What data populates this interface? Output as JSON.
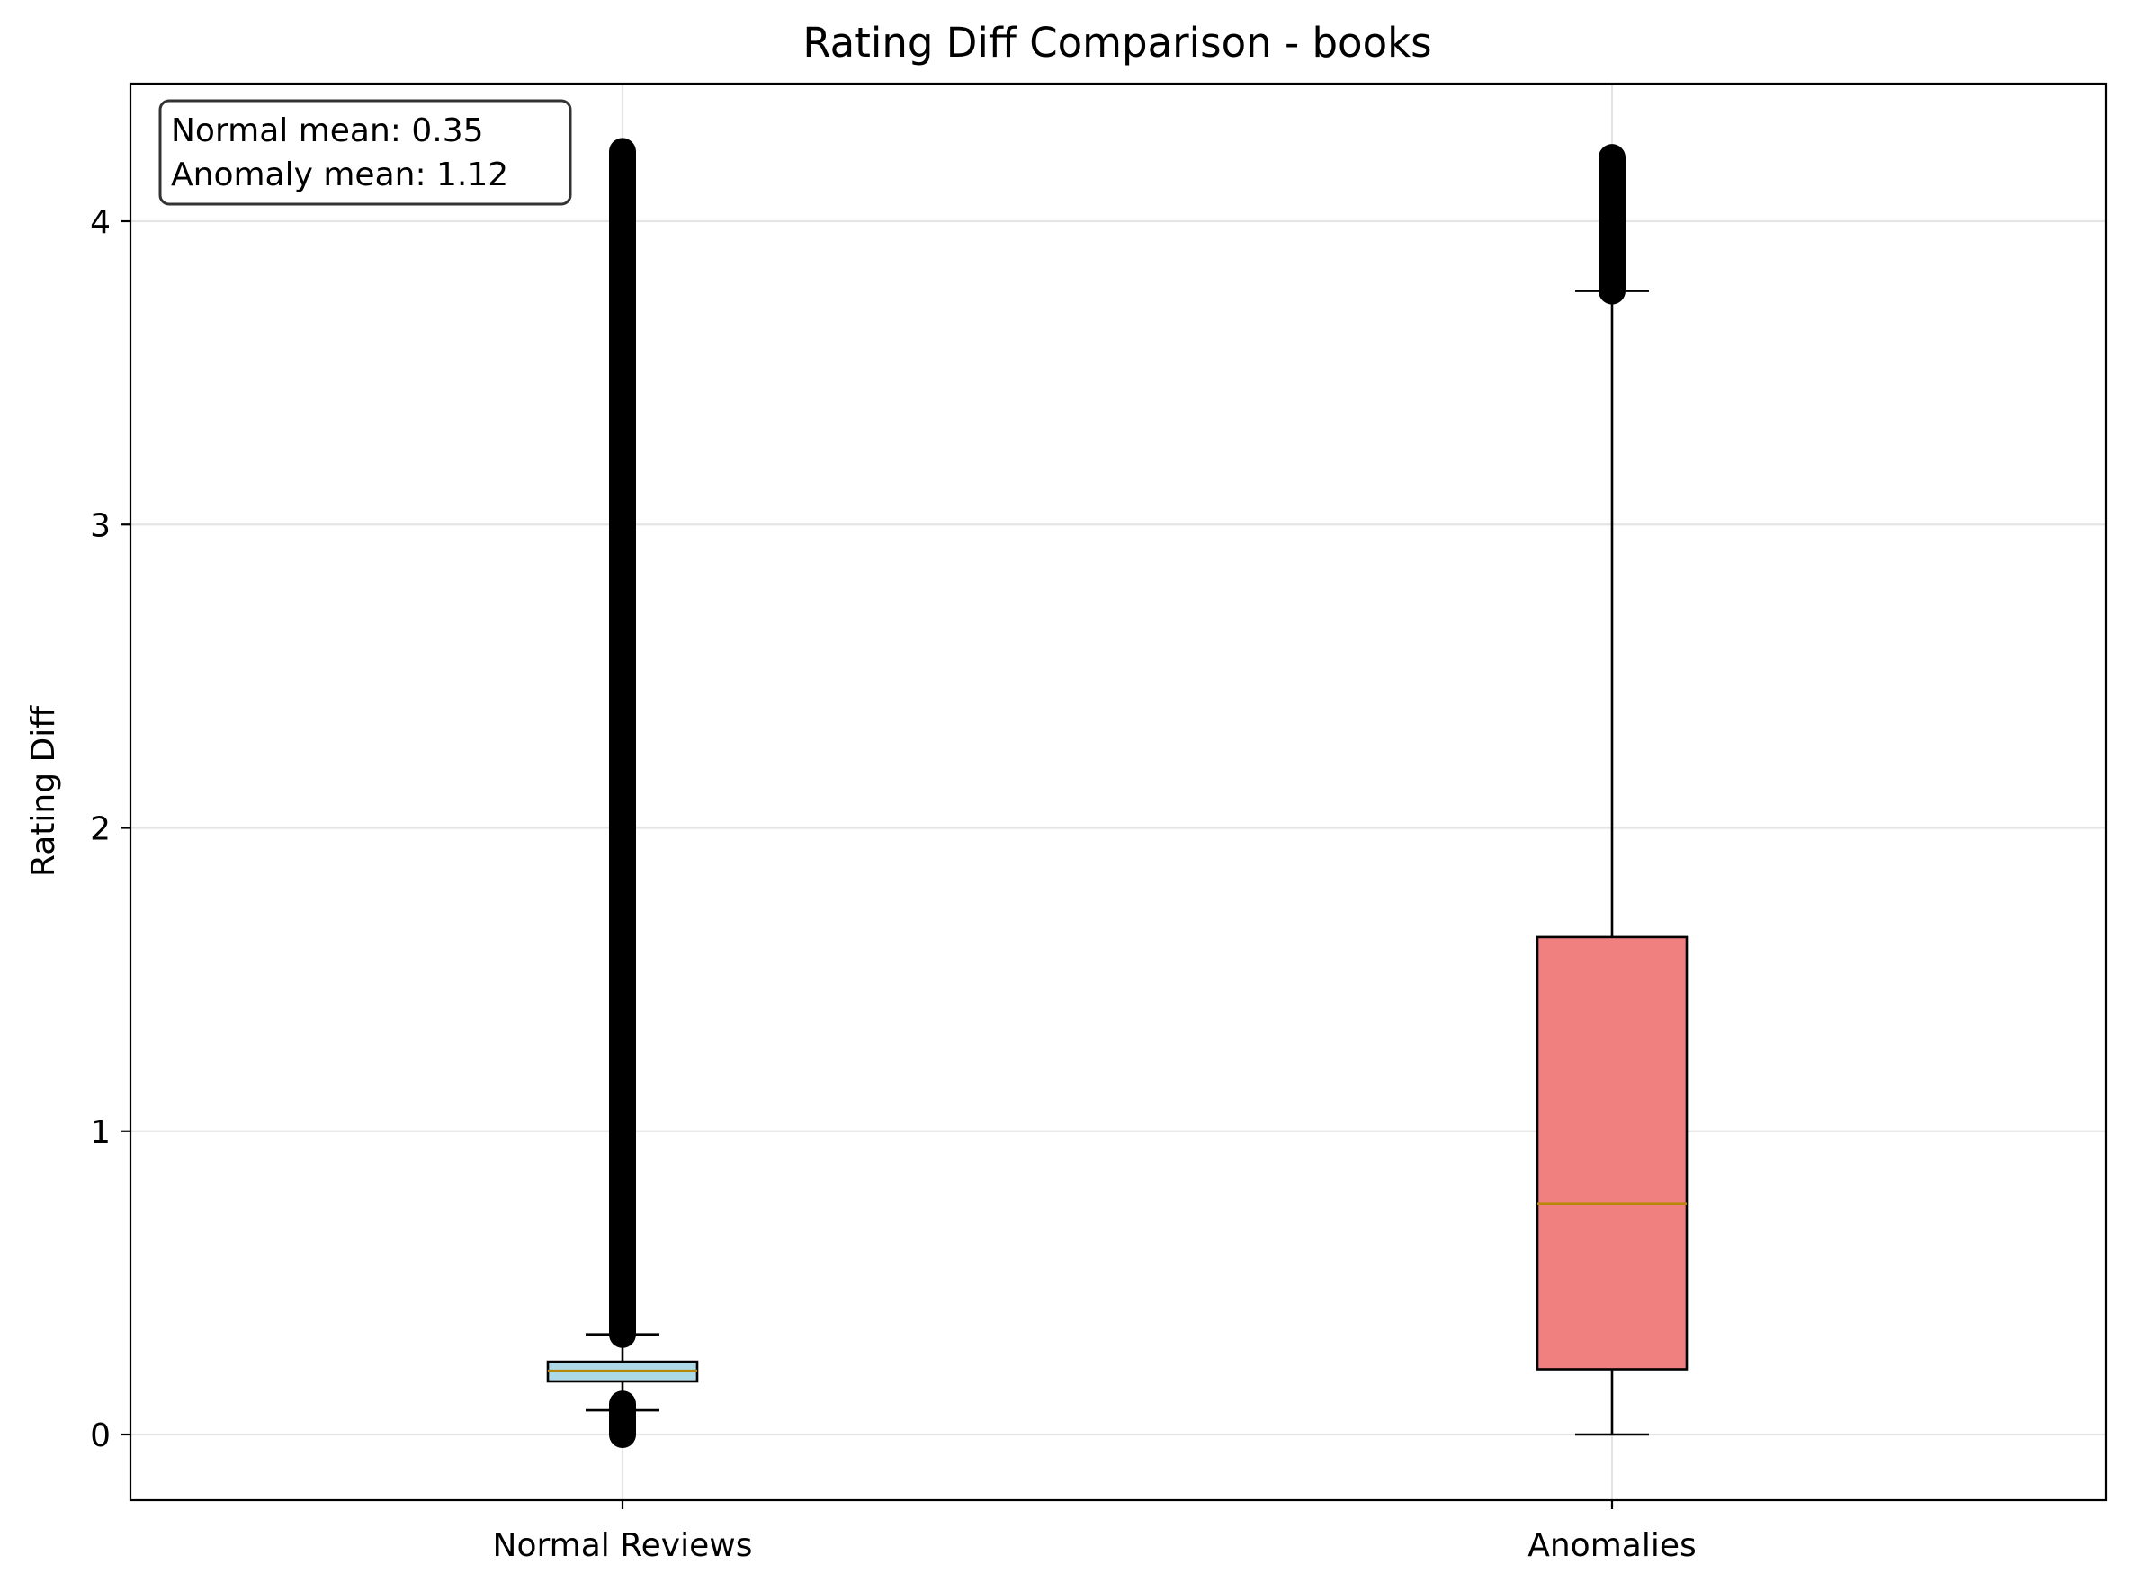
{
  "chart_data": {
    "type": "box",
    "title": "Rating Diff Comparison - books",
    "xlabel": "",
    "ylabel": "Rating Diff",
    "ylim": [
      -0.22,
      4.45
    ],
    "yticks": [
      0,
      1,
      2,
      3,
      4
    ],
    "grid": true,
    "categories": [
      "Normal Reviews",
      "Anomalies"
    ],
    "series": [
      {
        "name": "Normal Reviews",
        "fill": "#add8e6",
        "whisker_low": 0.08,
        "q1": 0.175,
        "median": 0.21,
        "q3": 0.24,
        "whisker_high": 0.33,
        "outliers_low_range": [
          0.0,
          0.1
        ],
        "outliers_high_range": [
          0.33,
          4.23
        ]
      },
      {
        "name": "Anomalies",
        "fill": "#f08080",
        "whisker_low": 0.0,
        "q1": 0.215,
        "median": 0.76,
        "q3": 1.64,
        "whisker_high": 3.77,
        "outliers_low_range": null,
        "outliers_high_range": [
          3.77,
          4.21
        ]
      }
    ],
    "annotation": {
      "normal_mean": "Normal mean: 0.35",
      "anomaly_mean": "Anomaly mean: 1.12"
    },
    "colors": {
      "median_line": "#b8860b",
      "grid": "#e5e5e5",
      "box_edge": "#000000"
    }
  }
}
